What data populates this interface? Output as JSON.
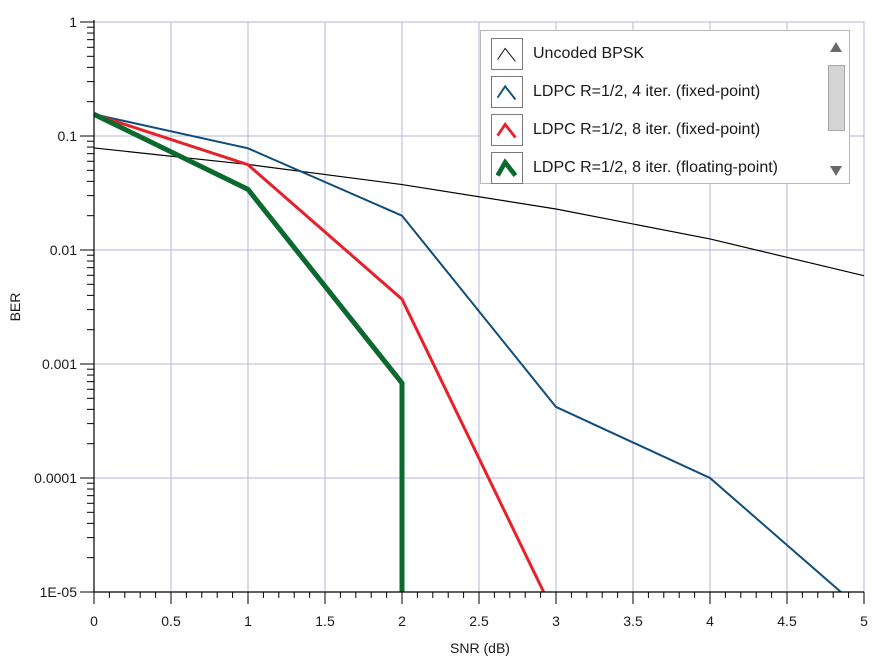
{
  "chart_data": {
    "type": "line",
    "xlabel": "SNR (dB)",
    "ylabel": "BER",
    "xlim": [
      0,
      5
    ],
    "ylim": [
      1e-05,
      1
    ],
    "yscale": "log",
    "grid": true,
    "legend_position": "top-right",
    "x_ticks": [
      "0",
      "0.5",
      "1",
      "1.5",
      "2",
      "2.5",
      "3",
      "3.5",
      "4",
      "4.5",
      "5"
    ],
    "y_ticks": [
      "1",
      "0.1",
      "0.01",
      "0.001",
      "0.0001",
      "1E-05"
    ],
    "series": [
      {
        "name": "Uncoded BPSK",
        "color": "#000000",
        "x": [
          0,
          1,
          2,
          3,
          4,
          5
        ],
        "y": [
          0.0786,
          0.0563,
          0.0375,
          0.0229,
          0.0125,
          0.00595
        ]
      },
      {
        "name": "LDPC R=1/2, 4 iter. (fixed-point)",
        "color": "#0e4d7a",
        "x": [
          0,
          1,
          2,
          3,
          4,
          4.85
        ],
        "y": [
          0.155,
          0.078,
          0.02,
          0.00042,
          0.0001,
          1e-05
        ]
      },
      {
        "name": "LDPC R=1/2, 8 iter. (fixed-point)",
        "color": "#e8202a",
        "x": [
          0,
          1,
          2,
          2.92
        ],
        "y": [
          0.155,
          0.056,
          0.0037,
          1e-05
        ]
      },
      {
        "name": "LDPC R=1/2, 8 iter. (floating-point)",
        "color": "#0a6a2e",
        "x": [
          0,
          1,
          2,
          2,
          2
        ],
        "y": [
          0.155,
          0.034,
          0.00068,
          0.0004,
          1e-05
        ]
      }
    ]
  },
  "legend": {
    "items": [
      {
        "label": "Uncoded BPSK"
      },
      {
        "label": "LDPC R=1/2, 4 iter. (fixed-point)"
      },
      {
        "label": "LDPC R=1/2, 8 iter. (fixed-point)"
      },
      {
        "label": "LDPC R=1/2, 8 iter. (floating-point)"
      }
    ]
  },
  "colors": {
    "grid": "#b6b6dc",
    "axis": "#000000"
  }
}
